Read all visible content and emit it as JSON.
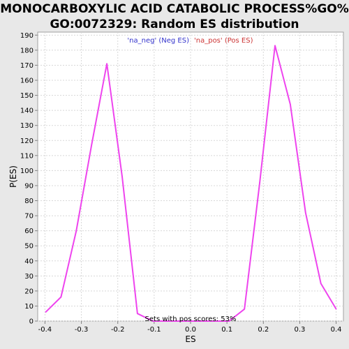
{
  "chart_data": {
    "type": "line",
    "title_line1": "MONOCARBOXYLIC ACID CATABOLIC PROCESS%GO%",
    "title_line2": "GO:0072329: Random ES distribution",
    "xlabel": "ES",
    "ylabel": "P(ES)",
    "xlim": [
      -0.42,
      0.42
    ],
    "ylim": [
      0,
      192
    ],
    "x_ticks": [
      -0.4,
      -0.3,
      -0.2,
      -0.1,
      0.0,
      0.1,
      0.2,
      0.3,
      0.4
    ],
    "x_tick_labels": [
      "-0.4",
      "-0.3",
      "-0.2",
      "-0.1",
      "0.0",
      "0.1",
      "0.2",
      "0.3",
      "0.4"
    ],
    "y_ticks": [
      0,
      10,
      20,
      30,
      40,
      50,
      60,
      70,
      80,
      90,
      100,
      110,
      120,
      130,
      140,
      150,
      160,
      170,
      180,
      190
    ],
    "y_tick_labels": [
      "0",
      "10",
      "20",
      "30",
      "40",
      "50",
      "60",
      "70",
      "80",
      "90",
      "100",
      "110",
      "120",
      "130",
      "140",
      "150",
      "160",
      "170",
      "180",
      "190"
    ],
    "grid": true,
    "legend": [
      {
        "label": "'na_neg' (Neg ES)",
        "color": "#3333cc"
      },
      {
        "label": "'na_pos' (Pos ES)",
        "color": "#cc3333"
      }
    ],
    "legend_placement": "top-center",
    "series": [
      {
        "color": "#ee44ee",
        "x": [
          -0.398,
          -0.356,
          -0.314,
          -0.272,
          -0.23,
          -0.188,
          -0.146,
          -0.104,
          -0.062,
          -0.02,
          0.022,
          0.064,
          0.106,
          0.148,
          0.19,
          0.232,
          0.274,
          0.316,
          0.358,
          0.4
        ],
        "y": [
          6,
          16,
          60,
          117,
          171,
          96,
          5,
          0,
          0,
          0,
          0,
          0,
          0,
          8,
          92,
          183,
          144,
          72,
          25,
          8
        ]
      }
    ],
    "annotation": "Sets with pos scores: 53%"
  }
}
